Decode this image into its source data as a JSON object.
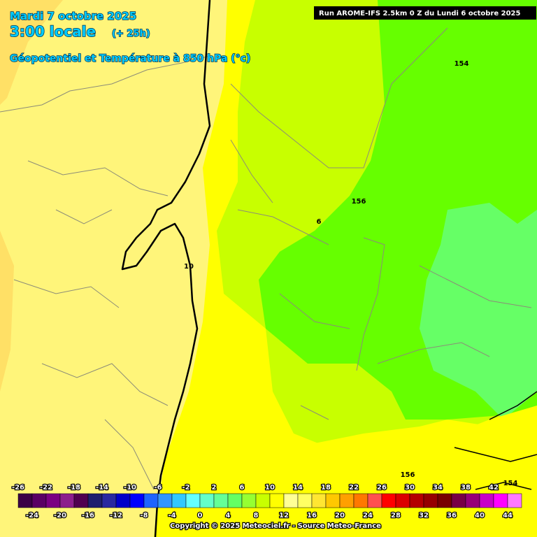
{
  "header": {
    "date": "Mardi 7 octobre 2025",
    "time": "3:00 locale",
    "lead": "(+ 25h)",
    "parameter": "Géopotentiel et Température à 850 hPa (°c)",
    "run": "Run AROME-IFS 2.5km 0 Z du Lundi 6 octobre 2025"
  },
  "contour_labels": [
    154,
    156,
    6,
    10,
    156,
    154
  ],
  "legend": {
    "labels_top": [
      -26,
      -22,
      -18,
      -14,
      -10,
      -6,
      -2,
      2,
      6,
      10,
      14,
      18,
      22,
      26,
      30,
      34,
      38,
      42
    ],
    "labels_bottom": [
      -24,
      -20,
      -16,
      -12,
      -8,
      -4,
      0,
      4,
      8,
      12,
      16,
      20,
      24,
      28,
      32,
      36,
      40,
      44
    ],
    "colors": [
      "#3c0046",
      "#5a0064",
      "#7a0082",
      "#8c1e8c",
      "#500050",
      "#1e1e6e",
      "#2828a0",
      "#0000c8",
      "#0000ff",
      "#1e64ff",
      "#3296ff",
      "#32c8ff",
      "#64ffff",
      "#64ffc8",
      "#64ff96",
      "#64ff64",
      "#96ff32",
      "#c8ff00",
      "#ffff00",
      "#ffff96",
      "#ffff64",
      "#ffe632",
      "#ffc800",
      "#ffa000",
      "#ff7800",
      "#ff5050",
      "#ff0000",
      "#dc0000",
      "#b40000",
      "#960000",
      "#780000",
      "#780046",
      "#960078",
      "#c800c8",
      "#ff00ff",
      "#ff78ff"
    ]
  },
  "footer": {
    "copyright": "Copyright © 2025 Meteociel.fr - Source Meteo-France"
  }
}
